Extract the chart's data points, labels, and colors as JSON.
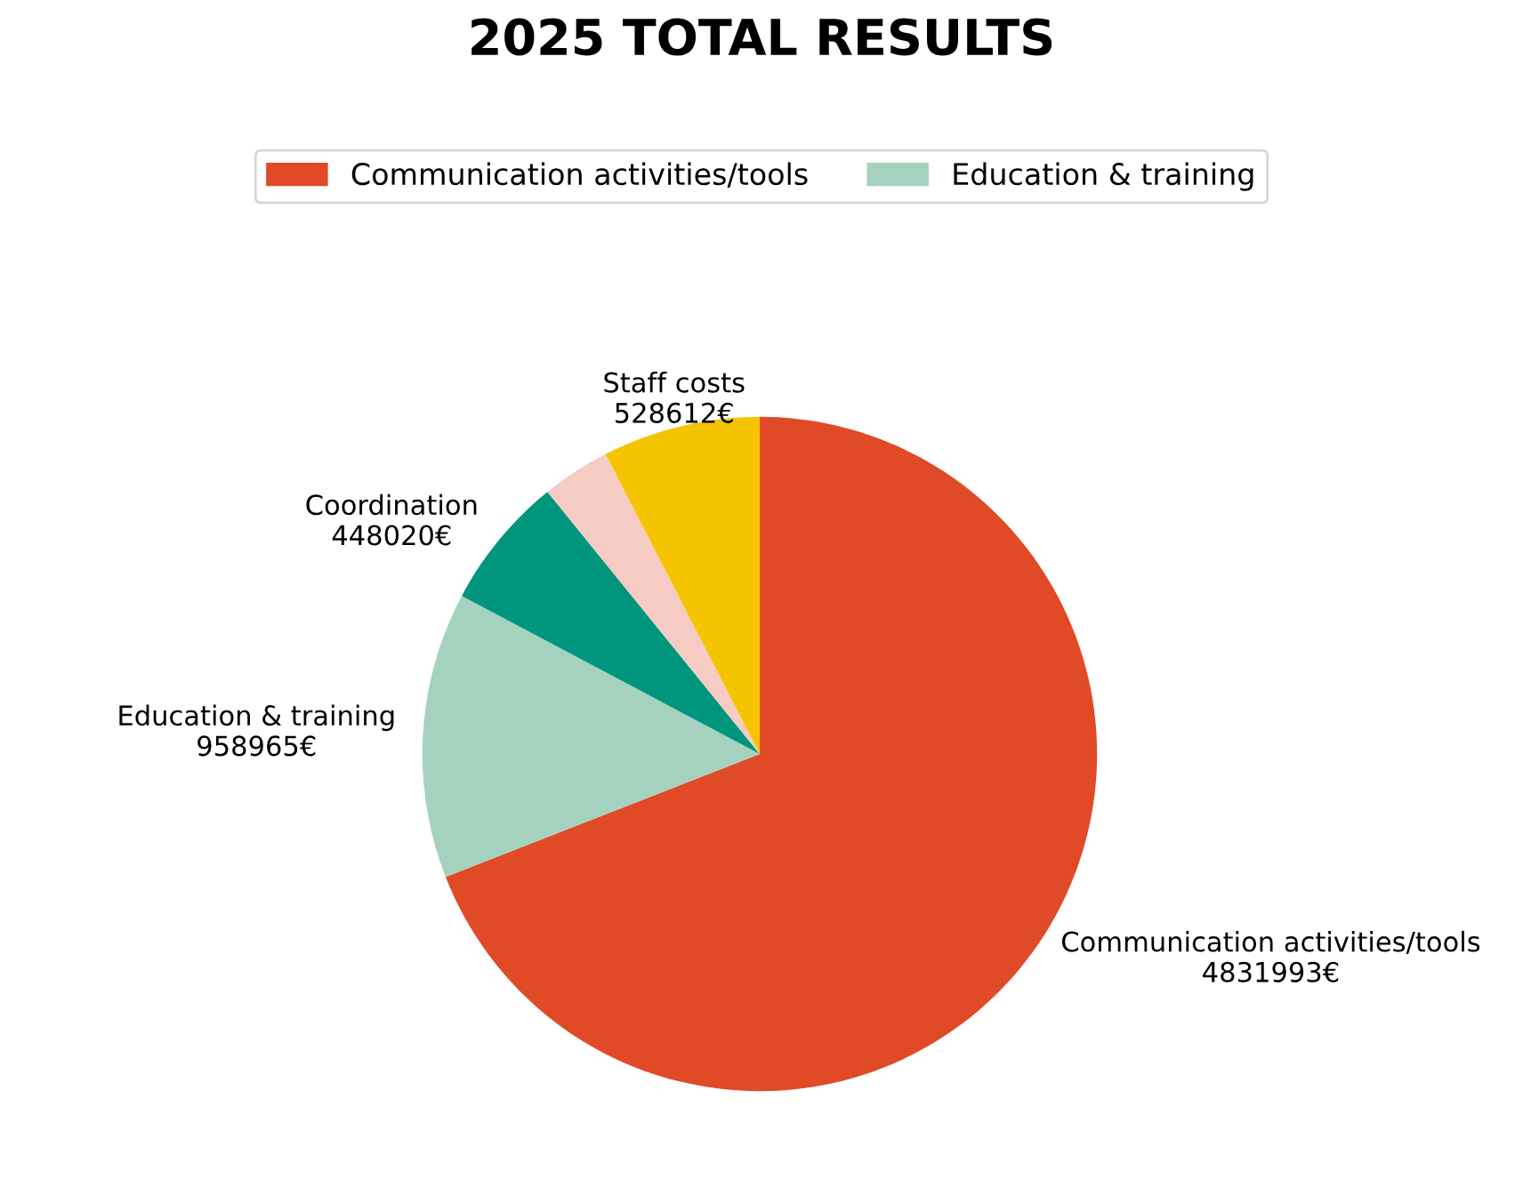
{
  "chart_data": {
    "type": "pie",
    "title": "2025 TOTAL RESULTS",
    "categories": [
      "Communication activities/tools",
      "Education & training",
      "Coordination",
      null,
      "Staff costs"
    ],
    "values": [
      4831993,
      958965,
      448020,
      229000,
      528612
    ],
    "colors": [
      "#e04a27",
      "#a5d2bf",
      "#00967d",
      "#f5cbc4",
      "#f5c400"
    ],
    "value_labels": [
      "4831993€",
      "958965€",
      "448020€",
      null,
      "528612€"
    ],
    "legend": "top"
  }
}
